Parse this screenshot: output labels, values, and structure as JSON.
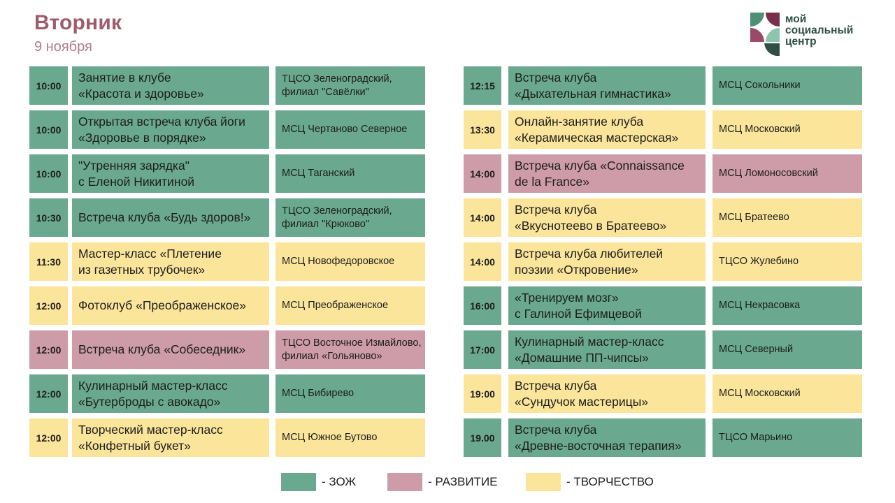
{
  "header": {
    "day": "Вторник",
    "date": "9 ноября"
  },
  "logo": {
    "line1": "мой",
    "line2": "социальный",
    "line3": "центр"
  },
  "colors": {
    "zozh": "#6aa98f",
    "razvitie": "#cd9ca8",
    "tvorchestvo": "#fbe59b",
    "title": "#a05a6e"
  },
  "left_events": [
    {
      "time": "10:00",
      "line1": "Занятие в клубе",
      "line2": "«Красота и здоровье»",
      "venue": "ТЦСО Зеленоградский, филиал \"Савёлки\"",
      "category": "zozh"
    },
    {
      "time": "10:00",
      "line1": "Открытая встреча клуба йоги",
      "line2": "«Здоровье в порядке»",
      "venue": "МСЦ Чертаново Северное",
      "category": "zozh"
    },
    {
      "time": "10:00",
      "line1": "\"Утренняя зарядка\"",
      "line2": "с Еленой Никитиной",
      "venue": "МСЦ Таганский",
      "category": "zozh"
    },
    {
      "time": "10:30",
      "line1": "Встреча клуба «Будь здоров!»",
      "line2": "",
      "venue": "ТЦСО Зеленоградский, филиал \"Крюково\"",
      "category": "zozh"
    },
    {
      "time": "11:30",
      "line1": "Мастер-класс «Плетение",
      "line2": "из газетных трубочек»",
      "venue": "МСЦ Новофедоровское",
      "category": "tvor"
    },
    {
      "time": "12:00",
      "line1": "Фотоклуб «Преображенское»",
      "line2": "",
      "venue": "МСЦ Преображенское",
      "category": "tvor"
    },
    {
      "time": "12:00",
      "line1": "Встреча клуба «Собеседник»",
      "line2": "",
      "venue": "ТЦСО Восточное Измайлово, филиал «Гольяново»",
      "category": "razv"
    },
    {
      "time": "12:00",
      "line1": "Кулинарный мастер-класс",
      "line2": "«Бутерброды с авокадо»",
      "venue": "МСЦ Бибирево",
      "category": "zozh"
    },
    {
      "time": "12:00",
      "line1": "Творческий мастер-класс",
      "line2": "«Конфетный букет»",
      "venue": "МСЦ Южное Бутово",
      "category": "tvor"
    }
  ],
  "right_events": [
    {
      "time": "12:15",
      "line1": "Встреча клуба",
      "line2": "«Дыхательная гимнастика»",
      "venue": "МСЦ Сокольники",
      "category": "zozh"
    },
    {
      "time": "13:30",
      "line1": "Онлайн-занятие клуба",
      "line2": "«Керамическая мастерская»",
      "venue": "МСЦ Московский",
      "category": "tvor"
    },
    {
      "time": "14:00",
      "line1": "Встреча клуба «Connaissance",
      "line2": "de la France»",
      "venue": "МСЦ Ломоносовский",
      "category": "razv"
    },
    {
      "time": "14:00",
      "line1": "Встреча клуба",
      "line2": "«Вкуснотеево в Братеево»",
      "venue": "МСЦ Братеево",
      "category": "tvor"
    },
    {
      "time": "14:00",
      "line1": "Встреча клуба любителей",
      "line2": "поэзии «Откровение»",
      "venue": "ТЦСО Жулебино",
      "category": "tvor"
    },
    {
      "time": "16:00",
      "line1": "«Тренируем мозг»",
      "line2": "с Галиной Ефимцевой",
      "venue": "МСЦ Некрасовка",
      "category": "zozh"
    },
    {
      "time": "17:00",
      "line1": "Кулинарный мастер-класс",
      "line2": "«Домашние ПП-чипсы»",
      "venue": "МСЦ Северный",
      "category": "zozh"
    },
    {
      "time": "19:00",
      "line1": "Встреча клуба",
      "line2": "«Сундучок мастерицы»",
      "venue": "МСЦ Московский",
      "category": "tvor"
    },
    {
      "time": "19.00",
      "line1": "Встреча клуба",
      "line2": "«Древне-восточная терапия»",
      "venue": "ТЦСО Марьино",
      "category": "zozh"
    }
  ],
  "legend": [
    {
      "label": "- ЗОЖ",
      "category": "zozh"
    },
    {
      "label": "- РАЗВИТИЕ",
      "category": "razv"
    },
    {
      "label": "- ТВОРЧЕСТВО",
      "category": "tvor"
    }
  ]
}
